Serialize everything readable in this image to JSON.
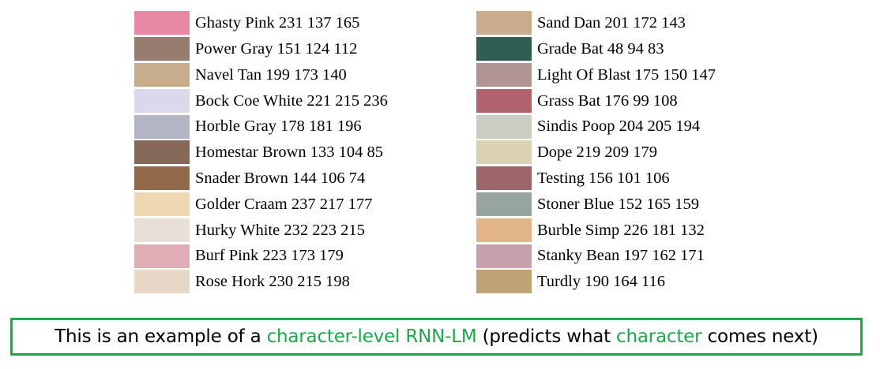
{
  "colors_left": [
    {
      "label": "Ghasty Pink 231 137 165",
      "swatch": "#e789a5"
    },
    {
      "label": "Power Gray 151 124 112",
      "swatch": "#977c70"
    },
    {
      "label": "Navel Tan 199 173 140",
      "swatch": "#c7ad8c"
    },
    {
      "label": "Bock Coe White 221 215 236",
      "swatch": "#ddd7ec"
    },
    {
      "label": "Horble Gray 178 181 196",
      "swatch": "#b2b5c4"
    },
    {
      "label": "Homestar Brown 133 104 85",
      "swatch": "#856855"
    },
    {
      "label": "Snader Brown 144 106 74",
      "swatch": "#906a4a"
    },
    {
      "label": "Golder Craam 237 217 177",
      "swatch": "#edd9b1"
    },
    {
      "label": "Hurky White 232 223 215",
      "swatch": "#e8dfd7"
    },
    {
      "label": "Burf Pink 223 173 179",
      "swatch": "#dfadb3"
    },
    {
      "label": "Rose Hork 230 215 198",
      "swatch": "#e6d7c6"
    }
  ],
  "colors_right": [
    {
      "label": "Sand Dan 201 172 143",
      "swatch": "#c9ac8f"
    },
    {
      "label": "Grade Bat 48 94 83",
      "swatch": "#305e53"
    },
    {
      "label": "Light Of Blast 175 150 147",
      "swatch": "#af9693"
    },
    {
      "label": "Grass Bat 176 99 108",
      "swatch": "#b0636c"
    },
    {
      "label": "Sindis Poop 204 205 194",
      "swatch": "#cccdc2"
    },
    {
      "label": "Dope 219 209 179",
      "swatch": "#dbd1b3"
    },
    {
      "label": "Testing 156 101 106",
      "swatch": "#9c656a"
    },
    {
      "label": "Stoner Blue 152 165 159",
      "swatch": "#98a59f"
    },
    {
      "label": "Burble Simp 226 181 132",
      "swatch": "#e2b584"
    },
    {
      "label": "Stanky Bean 197 162 171",
      "swatch": "#c5a2ab"
    },
    {
      "label": "Turdly 190 164 116",
      "swatch": "#bea474"
    }
  ],
  "caption": {
    "part1": "This is an example of a ",
    "highlight1": "character-level RNN-LM",
    "part2": " (predicts what ",
    "highlight2": "character",
    "part3": " comes next)"
  },
  "accent_color": "#1ba84a"
}
